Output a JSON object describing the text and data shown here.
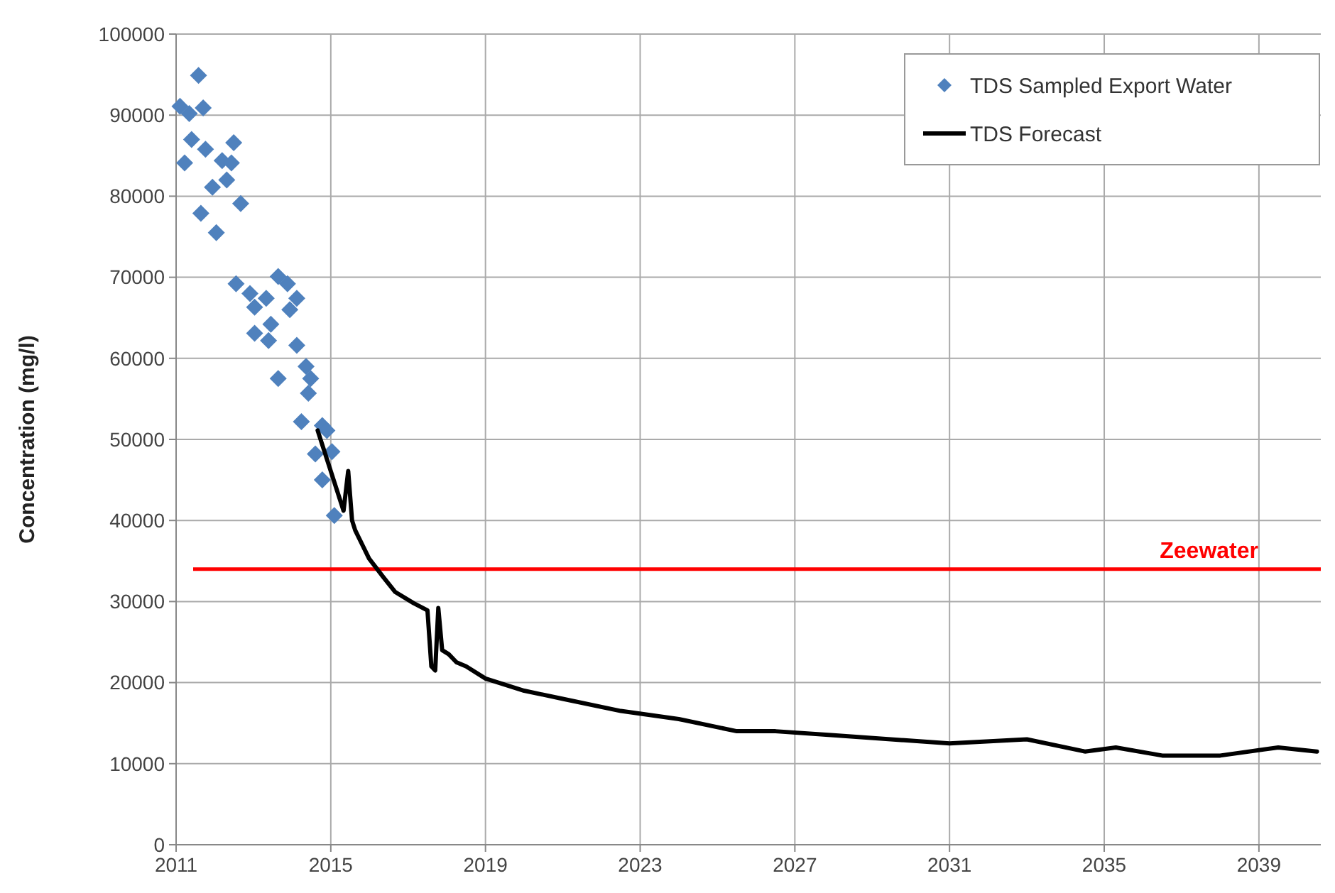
{
  "chart_data": {
    "type": "scatter",
    "ylabel": "Concentration (mg/l)",
    "xlim": [
      2011,
      2040.6
    ],
    "xticks": [
      2011,
      2015,
      2019,
      2023,
      2027,
      2031,
      2035,
      2039
    ],
    "ylim": [
      0,
      100000
    ],
    "yticks": [
      0,
      10000,
      20000,
      30000,
      40000,
      50000,
      60000,
      70000,
      80000,
      90000,
      100000
    ],
    "grid": true,
    "legend": "top right",
    "marker": "diamond",
    "series": [
      {
        "name": "TDS Sampled Export Water",
        "color": "#4f81bd",
        "x": [
          2011.58,
          2011.1,
          2011.34,
          2011.7,
          2011.22,
          2011.4,
          2011.76,
          2012.49,
          2012.19,
          2012.43,
          2012.31,
          2011.94,
          2011.64,
          2012.67,
          2012.04,
          2012.55,
          2012.91,
          2013.03,
          2013.33,
          2013.64,
          2013.88,
          2014.12,
          2013.94,
          2013.03,
          2013.39,
          2013.45,
          2014.12,
          2013.64,
          2014.36,
          2014.48,
          2014.42,
          2014.24,
          2014.78,
          2014.9,
          2014.6,
          2015.03,
          2014.78,
          2015.09
        ],
        "values": [
          94900,
          91100,
          90200,
          90900,
          84100,
          87000,
          85800,
          86600,
          84400,
          84100,
          82000,
          81100,
          77900,
          79100,
          75500,
          69200,
          68000,
          66300,
          67400,
          70100,
          69200,
          67400,
          66000,
          63100,
          62200,
          64200,
          61600,
          57500,
          59000,
          57500,
          55700,
          52200,
          51700,
          51100,
          48200,
          48500,
          45000,
          40600
        ]
      },
      {
        "name": "TDS Forecast",
        "type": "line",
        "color": "#000000",
        "marker": "none",
        "line_style": "solid",
        "x": [
          2014.66,
          2015.33,
          2015.45,
          2015.55,
          2015.63,
          2015.99,
          2016.36,
          2016.66,
          2017.14,
          2017.5,
          2017.6,
          2017.7,
          2017.78,
          2017.88,
          2018.05,
          2018.25,
          2018.5,
          2019,
          2020,
          2021,
          2022.5,
          2024,
          2025.5,
          2026.5,
          2028,
          2031,
          2033,
          2034.5,
          2035.3,
          2036.5,
          2038,
          2039.5,
          2040.5
        ],
        "values": [
          51100,
          41200,
          46100,
          40000,
          38800,
          35300,
          33000,
          31200,
          29800,
          28900,
          22000,
          21500,
          29200,
          24000,
          23500,
          22500,
          22000,
          20500,
          19000,
          18000,
          16500,
          15500,
          14000,
          14000,
          13500,
          12500,
          13000,
          11500,
          12000,
          11000,
          11000,
          12000,
          11500
        ]
      }
    ],
    "ref_lines": [
      {
        "axis": "y",
        "value": 34000,
        "label": "Zeewater",
        "color": "#ff0000",
        "line_style": "solid"
      }
    ]
  }
}
